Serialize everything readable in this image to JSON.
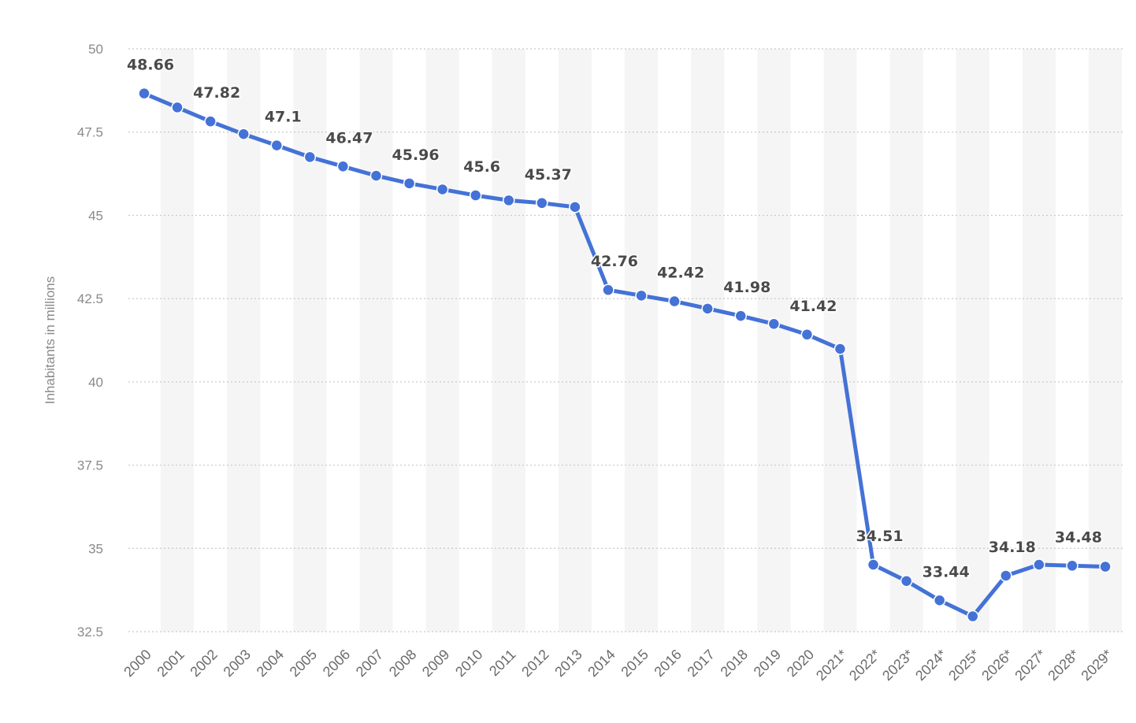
{
  "chart_data": {
    "type": "line",
    "title": "",
    "xlabel": "",
    "ylabel": "Inhabitants in millions",
    "ylim": [
      32.5,
      50
    ],
    "yticks": [
      "32.5",
      "35",
      "37.5",
      "40",
      "42.5",
      "45",
      "47.5",
      "50"
    ],
    "grid": true,
    "line_color": "#4472d6",
    "categories": [
      "2000",
      "2001",
      "2002",
      "2003",
      "2004",
      "2005",
      "2006",
      "2007",
      "2008",
      "2009",
      "2010",
      "2011",
      "2012",
      "2013",
      "2014",
      "2015",
      "2016",
      "2017",
      "2018",
      "2019",
      "2020",
      "2021*",
      "2022*",
      "2023*",
      "2024*",
      "2025*",
      "2026*",
      "2027*",
      "2028*",
      "2029*"
    ],
    "series": [
      {
        "values": [
          48.66,
          48.24,
          47.82,
          47.44,
          47.1,
          46.75,
          46.47,
          46.19,
          45.96,
          45.78,
          45.6,
          45.45,
          45.37,
          45.25,
          42.76,
          42.59,
          42.42,
          42.2,
          41.98,
          41.74,
          41.42,
          40.99,
          34.51,
          34.02,
          33.44,
          32.96,
          34.18,
          34.51,
          34.48,
          34.45
        ]
      }
    ],
    "data_labels": [
      {
        "index": 0,
        "text": "48.66"
      },
      {
        "index": 2,
        "text": "47.82"
      },
      {
        "index": 4,
        "text": "47.1"
      },
      {
        "index": 6,
        "text": "46.47"
      },
      {
        "index": 8,
        "text": "45.96"
      },
      {
        "index": 10,
        "text": "45.6"
      },
      {
        "index": 12,
        "text": "45.37"
      },
      {
        "index": 14,
        "text": "42.76"
      },
      {
        "index": 16,
        "text": "42.42"
      },
      {
        "index": 18,
        "text": "41.98"
      },
      {
        "index": 20,
        "text": "41.42"
      },
      {
        "index": 22,
        "text": "34.51"
      },
      {
        "index": 24,
        "text": "33.44"
      },
      {
        "index": 26,
        "text": "34.18"
      },
      {
        "index": 28,
        "text": "34.48"
      }
    ]
  }
}
